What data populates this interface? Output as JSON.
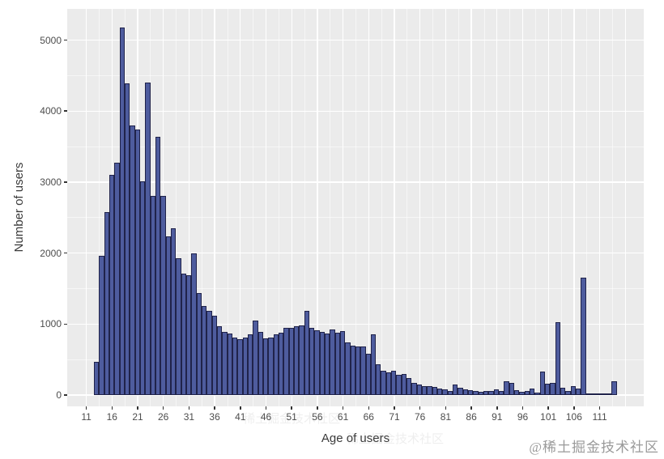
{
  "watermark": "@稀土掘金技术社区",
  "watermark_ghost": "稀土掘金技术社区",
  "chart_data": {
    "type": "bar",
    "subtype": "histogram",
    "title": "",
    "xlabel": "Age of users",
    "ylabel": "Number of users",
    "bin_width": 1,
    "ages": [
      13,
      14,
      15,
      16,
      17,
      18,
      19,
      20,
      21,
      22,
      23,
      24,
      25,
      26,
      27,
      28,
      29,
      30,
      31,
      32,
      33,
      34,
      35,
      36,
      37,
      38,
      39,
      40,
      41,
      42,
      43,
      44,
      45,
      46,
      47,
      48,
      49,
      50,
      51,
      52,
      53,
      54,
      55,
      56,
      57,
      58,
      59,
      60,
      61,
      62,
      63,
      64,
      65,
      66,
      67,
      68,
      69,
      70,
      71,
      72,
      73,
      74,
      75,
      76,
      77,
      78,
      79,
      80,
      81,
      82,
      83,
      84,
      85,
      86,
      87,
      88,
      89,
      90,
      91,
      92,
      93,
      94,
      95,
      96,
      97,
      98,
      99,
      100,
      101,
      102,
      103,
      104,
      105,
      106,
      107,
      108,
      109,
      110,
      111,
      112,
      113,
      114
    ],
    "values": [
      470,
      1960,
      2580,
      3100,
      3270,
      5180,
      4390,
      3800,
      3740,
      3010,
      4400,
      2810,
      3640,
      2800,
      2230,
      2350,
      1930,
      1710,
      1690,
      1990,
      1440,
      1250,
      1190,
      1120,
      970,
      890,
      870,
      815,
      785,
      815,
      860,
      1050,
      890,
      795,
      815,
      850,
      880,
      945,
      945,
      965,
      985,
      1190,
      945,
      915,
      890,
      870,
      920,
      880,
      900,
      740,
      700,
      680,
      690,
      585,
      850,
      435,
      340,
      320,
      340,
      280,
      300,
      245,
      170,
      150,
      130,
      130,
      110,
      90,
      80,
      60,
      150,
      105,
      75,
      70,
      55,
      45,
      55,
      55,
      80,
      55,
      190,
      170,
      65,
      50,
      60,
      90,
      30,
      330,
      160,
      175,
      1030,
      100,
      60,
      120,
      90,
      1650,
      15,
      10,
      10,
      15,
      25,
      190
    ],
    "xticks": [
      11,
      16,
      21,
      26,
      31,
      36,
      41,
      46,
      51,
      56,
      61,
      66,
      71,
      76,
      81,
      86,
      91,
      96,
      101,
      106,
      111
    ],
    "yticks": [
      0,
      1000,
      2000,
      3000,
      4000,
      5000
    ],
    "ylim": [
      0,
      5400
    ],
    "xlim": [
      9.5,
      118.5
    ],
    "grid": true,
    "legend_position": "none",
    "colors": {
      "bar_fill": "#4e5c9e",
      "bar_stroke": "#20234a",
      "panel_bg": "#ebebeb",
      "grid": "#ffffff",
      "tick_label": "#4d4d4d",
      "axis_title": "#3a3a3a",
      "watermark": "#9a9a9a"
    }
  }
}
